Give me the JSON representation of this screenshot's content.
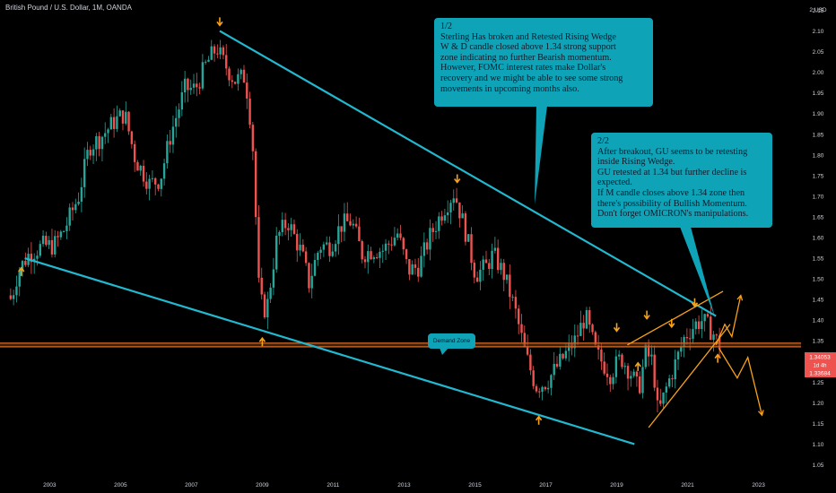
{
  "header": {
    "title": "British Pound / U.S. Dollar, 1M, OANDA"
  },
  "callouts": {
    "one": "1/2\nSterling Has broken and Retested Rising Wedge\nW & D candle closed above 1.34 strong support\nzone indicating no further Bearish momentum.\nHowever, FOMC interest rates make Dollar's\nrecovery and we might be able to see some strong\nmovements in upcoming months also.",
    "two": "2/2\nAfter breakout, GU seems to be retesting\ninside Rising Wedge.\nGU retested  at 1.34 but further decline is\nexpected.\nIf M candle closes above 1.34 zone then\nthere's possibility of Bullish Momentum.\nDon't forget OMICRON's manipulations.",
    "demand_zone": "Demand Zone"
  },
  "colors": {
    "background": "#000000",
    "up_candle": "#26a69a",
    "down_candle": "#ef5350",
    "trendline": "#22b8cf",
    "support_line": "#f0762e",
    "arrow": "#f7a21b",
    "callout": "#0fa3b8",
    "price_badge": "#ef5350"
  },
  "price_badges": {
    "price": "1.34053",
    "countdown": "1d 4h",
    "level": "1.33684"
  },
  "chart_data": {
    "type": "candlestick",
    "title": "British Pound / U.S. Dollar, 1M, OANDA",
    "y_unit_label": "USD",
    "ylim": [
      1.025,
      2.175
    ],
    "xlim": [
      2001.6,
      2024.2
    ],
    "y_ticks": [
      "2.15",
      "2.10",
      "2.05",
      "2.00",
      "1.95",
      "1.90",
      "1.85",
      "1.80",
      "1.75",
      "1.70",
      "1.65",
      "1.60",
      "1.55",
      "1.50",
      "1.45",
      "1.40",
      "1.35",
      "1.30",
      "1.25",
      "1.20",
      "1.15",
      "1.10",
      "1.05"
    ],
    "x_ticks": [
      "2003",
      "2005",
      "2007",
      "2009",
      "2011",
      "2013",
      "2015",
      "2017",
      "2019",
      "2021",
      "2023"
    ],
    "price_path": [
      [
        2001.9,
        1.46
      ],
      [
        2002.0,
        1.45
      ],
      [
        2002.2,
        1.52
      ],
      [
        2002.5,
        1.56
      ],
      [
        2002.9,
        1.58
      ],
      [
        2003.2,
        1.58
      ],
      [
        2003.5,
        1.62
      ],
      [
        2003.9,
        1.7
      ],
      [
        2004.2,
        1.82
      ],
      [
        2004.5,
        1.84
      ],
      [
        2004.9,
        1.88
      ],
      [
        2005.2,
        1.9
      ],
      [
        2005.5,
        1.79
      ],
      [
        2005.9,
        1.73
      ],
      [
        2006.2,
        1.74
      ],
      [
        2006.5,
        1.85
      ],
      [
        2006.9,
        1.96
      ],
      [
        2007.2,
        1.96
      ],
      [
        2007.5,
        2.02
      ],
      [
        2007.8,
        2.06
      ],
      [
        2007.95,
        2.03
      ],
      [
        2008.3,
        1.98
      ],
      [
        2008.6,
        1.99
      ],
      [
        2008.8,
        1.85
      ],
      [
        2009.0,
        1.45
      ],
      [
        2009.2,
        1.42
      ],
      [
        2009.5,
        1.6
      ],
      [
        2009.8,
        1.64
      ],
      [
        2010.2,
        1.56
      ],
      [
        2010.4,
        1.49
      ],
      [
        2010.7,
        1.58
      ],
      [
        2011.0,
        1.58
      ],
      [
        2011.3,
        1.63
      ],
      [
        2011.6,
        1.64
      ],
      [
        2011.9,
        1.56
      ],
      [
        2012.2,
        1.57
      ],
      [
        2012.5,
        1.57
      ],
      [
        2012.9,
        1.61
      ],
      [
        2013.2,
        1.52
      ],
      [
        2013.5,
        1.53
      ],
      [
        2013.8,
        1.6
      ],
      [
        2014.2,
        1.67
      ],
      [
        2014.5,
        1.71
      ],
      [
        2014.8,
        1.62
      ],
      [
        2015.1,
        1.51
      ],
      [
        2015.4,
        1.53
      ],
      [
        2015.6,
        1.56
      ],
      [
        2015.9,
        1.51
      ],
      [
        2016.2,
        1.43
      ],
      [
        2016.5,
        1.32
      ],
      [
        2016.8,
        1.24
      ],
      [
        2017.1,
        1.25
      ],
      [
        2017.5,
        1.3
      ],
      [
        2017.9,
        1.35
      ],
      [
        2018.2,
        1.41
      ],
      [
        2018.5,
        1.32
      ],
      [
        2018.9,
        1.27
      ],
      [
        2019.2,
        1.31
      ],
      [
        2019.5,
        1.27
      ],
      [
        2019.7,
        1.23
      ],
      [
        2019.9,
        1.32
      ],
      [
        2020.1,
        1.3
      ],
      [
        2020.25,
        1.17
      ],
      [
        2020.5,
        1.24
      ],
      [
        2020.8,
        1.31
      ],
      [
        2021.0,
        1.36
      ],
      [
        2021.3,
        1.39
      ],
      [
        2021.5,
        1.4
      ],
      [
        2021.8,
        1.37
      ],
      [
        2021.95,
        1.34
      ]
    ],
    "trendlines": [
      {
        "from": [
          2007.8,
          2.1
        ],
        "to": [
          2021.8,
          1.41
        ],
        "label": ""
      },
      {
        "from": [
          2002.3,
          1.55
        ],
        "to": [
          2019.5,
          1.1
        ],
        "label": ""
      }
    ],
    "rising_wedge": {
      "upper": {
        "from": [
          2019.3,
          1.34
        ],
        "to": [
          2022.0,
          1.47
        ]
      },
      "lower": {
        "from": [
          2019.9,
          1.14
        ],
        "to": [
          2022.2,
          1.39
        ]
      }
    },
    "support_level": 1.34,
    "demand_zone_label": "Demand Zone",
    "projections": {
      "bullish": [
        [
          2021.8,
          1.34
        ],
        [
          2022.05,
          1.39
        ],
        [
          2022.25,
          1.36
        ],
        [
          2022.5,
          1.46
        ]
      ],
      "bearish": [
        [
          2021.9,
          1.33
        ],
        [
          2022.4,
          1.26
        ],
        [
          2022.7,
          1.31
        ],
        [
          2023.1,
          1.17
        ]
      ]
    },
    "arrow_markers": [
      {
        "x": 2002.2,
        "y": 1.52,
        "dir": "up"
      },
      {
        "x": 2007.8,
        "y": 2.12,
        "dir": "down"
      },
      {
        "x": 2009.0,
        "y": 1.35,
        "dir": "up"
      },
      {
        "x": 2014.5,
        "y": 1.74,
        "dir": "down"
      },
      {
        "x": 2016.8,
        "y": 1.16,
        "dir": "up"
      },
      {
        "x": 2019.0,
        "y": 1.38,
        "dir": "down"
      },
      {
        "x": 2019.6,
        "y": 1.29,
        "dir": "up"
      },
      {
        "x": 2019.85,
        "y": 1.41,
        "dir": "down"
      },
      {
        "x": 2020.55,
        "y": 1.39,
        "dir": "down"
      },
      {
        "x": 2021.2,
        "y": 1.44,
        "dir": "down"
      },
      {
        "x": 2021.85,
        "y": 1.31,
        "dir": "up"
      }
    ],
    "current_price": 1.34053,
    "current_level": 1.33684
  }
}
